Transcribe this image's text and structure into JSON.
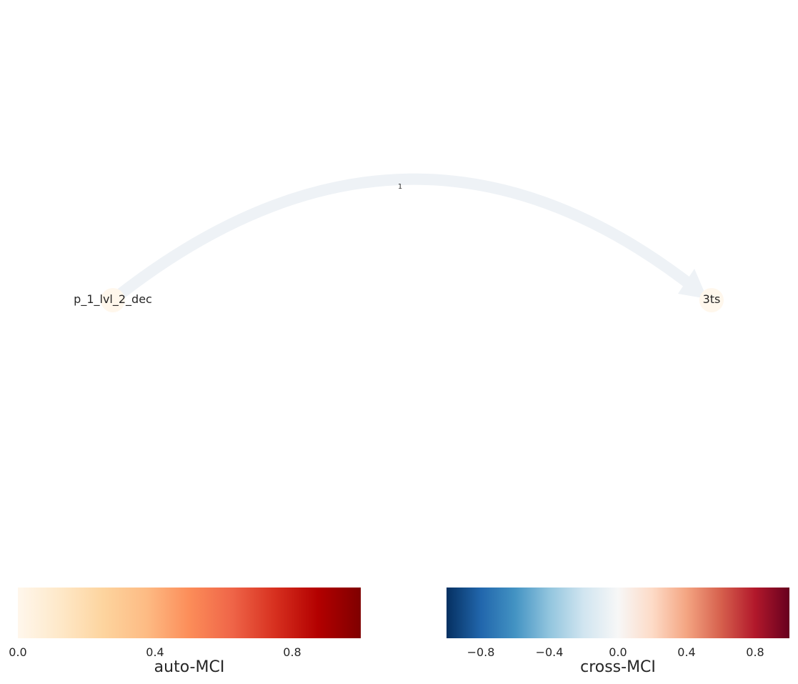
{
  "graph": {
    "nodes": [
      {
        "id": "p_1_lvl_2_dec",
        "label": "p_1_lvl_2_dec",
        "color": "#fff7ec"
      },
      {
        "id": "3ts",
        "label": "3ts",
        "color": "#fff7ec"
      }
    ],
    "edges": [
      {
        "source": "p_1_lvl_2_dec",
        "target": "3ts",
        "label": "1",
        "color": "#eef2f6",
        "directed": true
      }
    ]
  },
  "colorbars": {
    "auto": {
      "title": "auto-MCI",
      "colormap": "OrRd",
      "range": [
        0.0,
        1.0
      ],
      "ticks": [
        0.0,
        0.4,
        0.8
      ],
      "tick_labels": [
        "0.0",
        "0.4",
        "0.8"
      ],
      "stops": [
        "#fff7ec",
        "#fee8c8",
        "#fdd49e",
        "#fdbb84",
        "#fc8d59",
        "#ef6548",
        "#d7301f",
        "#b30000",
        "#7f0000"
      ]
    },
    "cross": {
      "title": "cross-MCI",
      "colormap": "RdBu_r",
      "range": [
        -1.0,
        1.0
      ],
      "ticks": [
        -0.8,
        -0.4,
        0.0,
        0.4,
        0.8
      ],
      "tick_labels": [
        "−0.8",
        "−0.4",
        "0.0",
        "0.4",
        "0.8"
      ],
      "stops": [
        "#053061",
        "#2166ac",
        "#4393c3",
        "#92c5de",
        "#d1e5f0",
        "#f7f7f7",
        "#fddbc7",
        "#f4a582",
        "#d6604d",
        "#b2182b",
        "#67001f"
      ]
    }
  }
}
